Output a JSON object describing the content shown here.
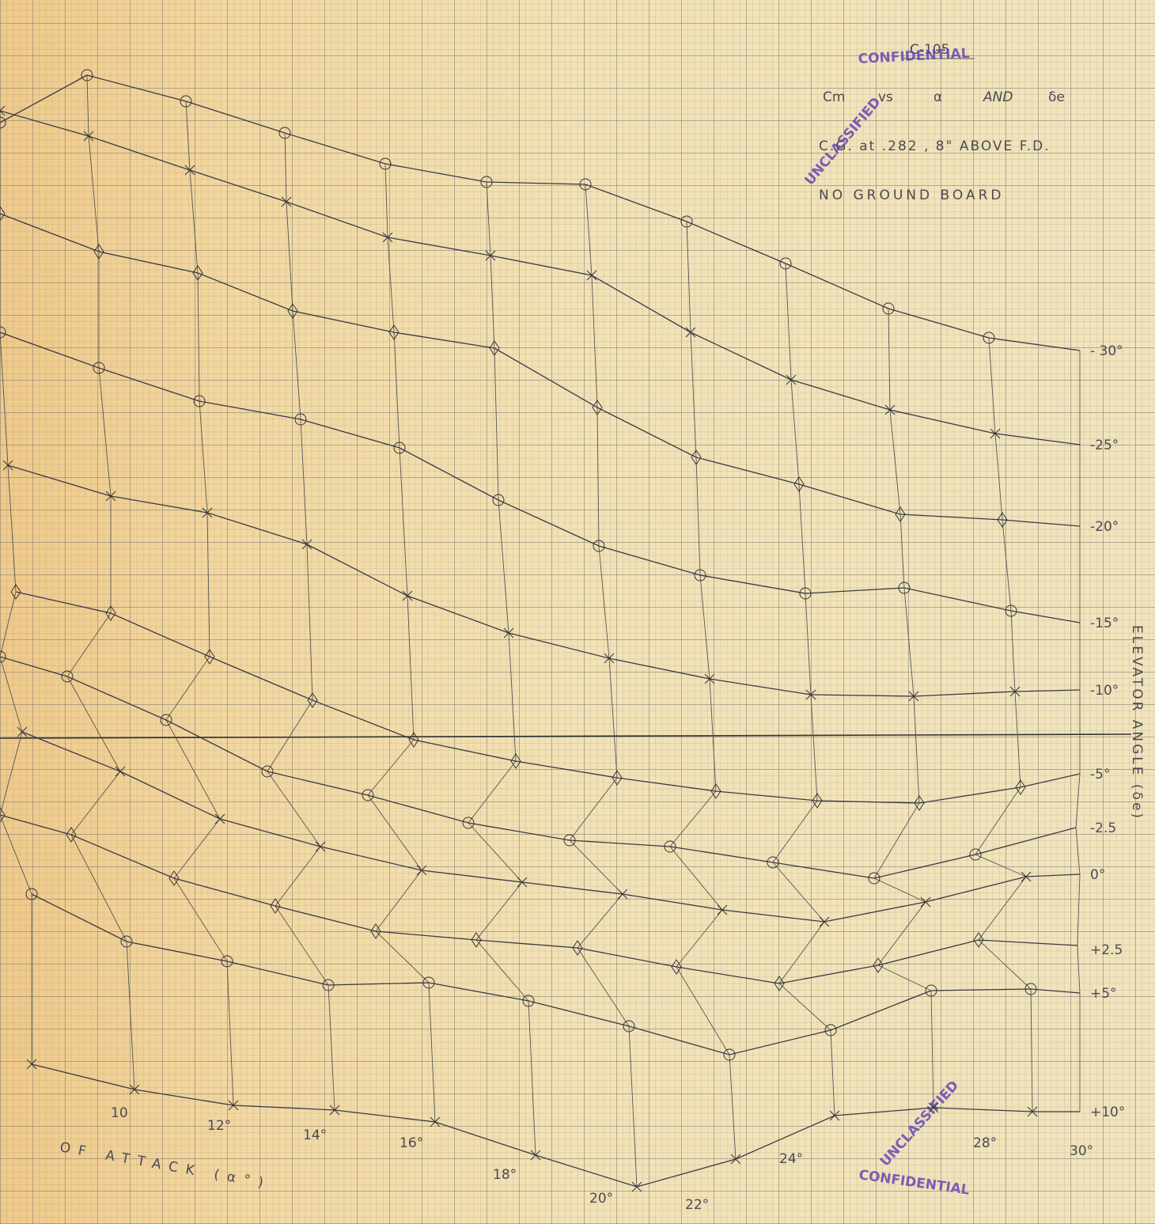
{
  "header": {
    "sheet": "C-105",
    "title": [
      "Cm",
      "vs",
      "α",
      "AND",
      "δe"
    ],
    "condition": "C.G. at .282 , 8\" ABOVE F.D.",
    "note": "NO GROUND BOARD"
  },
  "stamps": [
    "CONFIDENTIAL",
    "UNCLASSIFIED",
    "UNCLASSIFIED",
    "CONFIDENTIAL"
  ],
  "elevator_labels": [
    "- 30°",
    "-25°",
    "-20°",
    "-15°",
    "-10°",
    "-5°",
    "-2.5",
    "0°",
    "+2.5",
    "+5°",
    "+10°"
  ],
  "alpha_labels": [
    "10",
    "12°",
    "14°",
    "16°",
    "18°",
    "20°",
    "22°",
    "24°",
    "28°",
    "30°"
  ],
  "axis_titles": {
    "right": "ELEVATOR ANGLE (δe)",
    "bottom": "OF ATTACK (α°)"
  }
}
